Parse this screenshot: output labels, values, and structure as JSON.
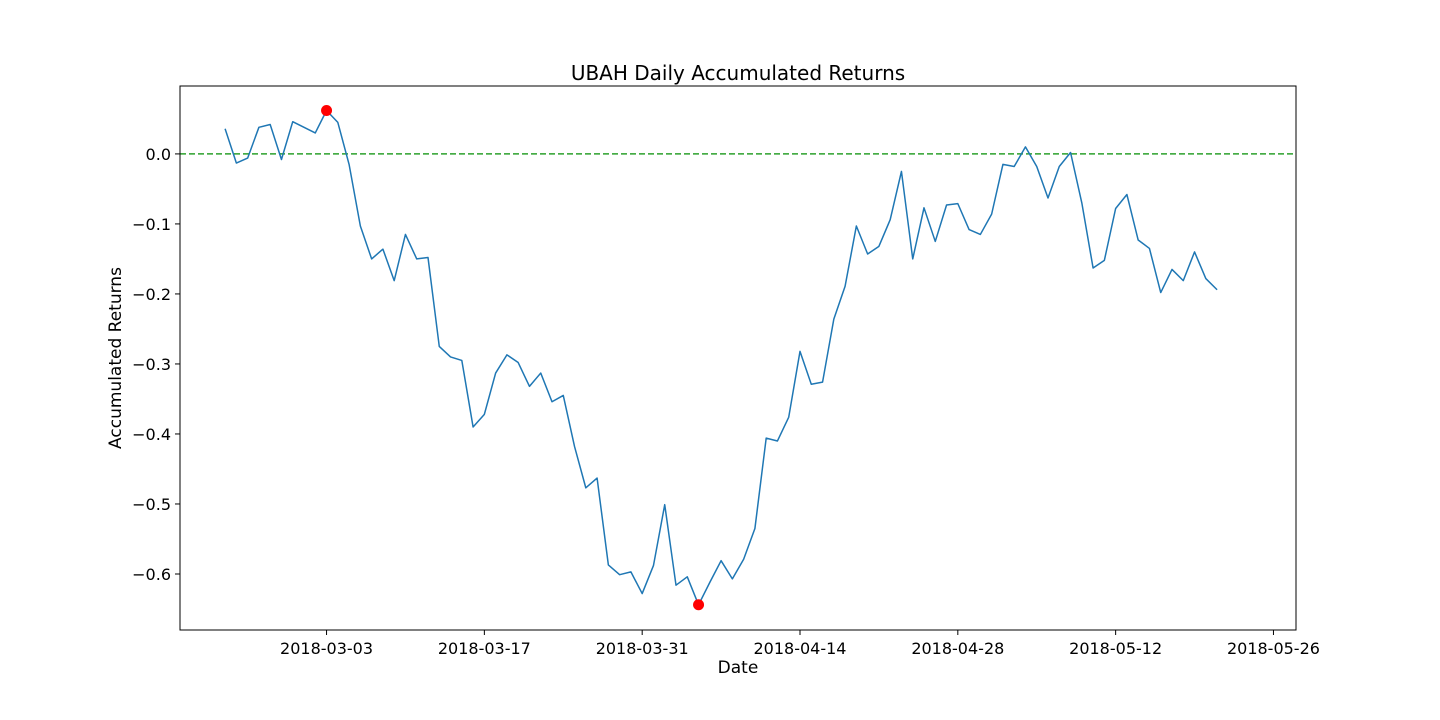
{
  "chart_data": {
    "type": "line",
    "title": "UBAH Daily Accumulated Returns",
    "xlabel": "Date",
    "ylabel": "Accumulated Returns",
    "x_start": "2018-02-22",
    "x_step_days": 1,
    "xlim": [
      "2018-02-18",
      "2018-05-28"
    ],
    "ylim": [
      -0.68,
      0.097
    ],
    "x_ticks": [
      "2018-03-03",
      "2018-03-17",
      "2018-03-31",
      "2018-04-14",
      "2018-04-28",
      "2018-05-12",
      "2018-05-26"
    ],
    "y_ticks": [
      0.0,
      -0.1,
      -0.2,
      -0.3,
      -0.4,
      -0.5,
      -0.6
    ],
    "y_tick_labels": [
      "0.0",
      "−0.1",
      "−0.2",
      "−0.3",
      "−0.4",
      "−0.5",
      "−0.6"
    ],
    "grid": false,
    "series": [
      {
        "color": "#1f77b4",
        "values": [
          0.036,
          -0.013,
          -0.006,
          0.038,
          0.042,
          -0.008,
          0.046,
          0.038,
          0.03,
          0.062,
          0.045,
          -0.015,
          -0.103,
          -0.15,
          -0.136,
          -0.181,
          -0.115,
          -0.15,
          -0.148,
          -0.275,
          -0.29,
          -0.295,
          -0.39,
          -0.372,
          -0.313,
          -0.287,
          -0.298,
          -0.332,
          -0.313,
          -0.354,
          -0.345,
          -0.418,
          -0.477,
          -0.463,
          -0.587,
          -0.601,
          -0.597,
          -0.628,
          -0.588,
          -0.501,
          -0.616,
          -0.604,
          -0.644,
          -0.612,
          -0.581,
          -0.607,
          -0.579,
          -0.535,
          -0.406,
          -0.41,
          -0.376,
          -0.282,
          -0.329,
          -0.326,
          -0.236,
          -0.189,
          -0.103,
          -0.143,
          -0.132,
          -0.094,
          -0.025,
          -0.15,
          -0.077,
          -0.125,
          -0.073,
          -0.071,
          -0.108,
          -0.115,
          -0.086,
          -0.015,
          -0.018,
          0.01,
          -0.018,
          -0.063,
          -0.018,
          0.002,
          -0.07,
          -0.163,
          -0.152,
          -0.078,
          -0.058,
          -0.123,
          -0.135,
          -0.198,
          -0.165,
          -0.181,
          -0.14,
          -0.178,
          -0.194
        ]
      }
    ],
    "reference_line": {
      "y": 0.0,
      "color": "#2ca02c",
      "style": "dashed"
    },
    "markers": [
      {
        "x": "2018-03-03",
        "y": 0.062,
        "color": "#ff0000"
      },
      {
        "x": "2018-04-05",
        "y": -0.644,
        "color": "#ff0000"
      }
    ]
  }
}
